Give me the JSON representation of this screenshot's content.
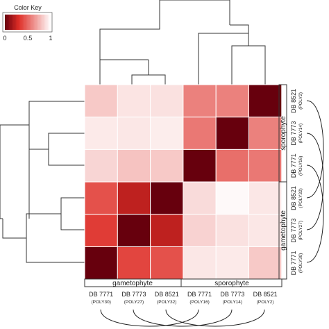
{
  "color_key": {
    "title": "Color Key",
    "ticks": [
      "0",
      "0.5",
      "1"
    ],
    "low_color": "#67000d",
    "high_color": "#ffffff"
  },
  "chart_data": {
    "type": "heatmap",
    "columns": [
      {
        "name": "DB 7771",
        "sub": "(POLY30)"
      },
      {
        "name": "DB 7773",
        "sub": "(POLY27)"
      },
      {
        "name": "DB 8521",
        "sub": "(POLY32)"
      },
      {
        "name": "DB 7771",
        "sub": "(POLY16)"
      },
      {
        "name": "DB 7773",
        "sub": "(POLY14)"
      },
      {
        "name": "DB 8521",
        "sub": "(POLY2)"
      }
    ],
    "rows": [
      {
        "name": "DB 8521",
        "sub": "(POLY2)"
      },
      {
        "name": "DB 7773",
        "sub": "(POLY14)"
      },
      {
        "name": "DB 7771",
        "sub": "(POLY16)"
      },
      {
        "name": "DB 8521",
        "sub": "(POLY32)"
      },
      {
        "name": "DB 7773",
        "sub": "(POLY27)"
      },
      {
        "name": "DB 7771",
        "sub": "(POLY30)"
      }
    ],
    "values": [
      [
        0.82,
        0.91,
        0.9,
        0.58,
        0.58,
        0.0
      ],
      [
        0.93,
        0.92,
        0.94,
        0.55,
        0.0,
        0.58
      ],
      [
        0.86,
        0.8,
        0.82,
        0.0,
        0.52,
        0.55
      ],
      [
        0.42,
        0.22,
        0.0,
        0.88,
        0.98,
        0.92
      ],
      [
        0.35,
        0.0,
        0.22,
        0.85,
        0.9,
        0.92
      ],
      [
        0.0,
        0.38,
        0.42,
        0.92,
        0.93,
        0.82
      ]
    ],
    "value_range": [
      0,
      1
    ],
    "column_groups": [
      {
        "label": "gametophyte",
        "from": 0,
        "to": 2
      },
      {
        "label": "sporophyte",
        "from": 3,
        "to": 5
      }
    ],
    "row_groups": [
      {
        "label": "sporophyte",
        "from": 0,
        "to": 2
      },
      {
        "label": "gametophyte",
        "from": 3,
        "to": 5
      }
    ]
  }
}
